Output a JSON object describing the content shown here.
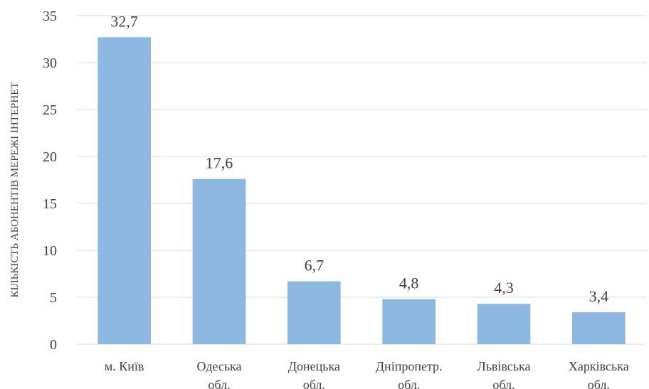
{
  "chart_data": {
    "type": "bar",
    "categories": [
      [
        "м. Київ"
      ],
      [
        "Одеська",
        "обл."
      ],
      [
        "Донецька",
        "обл."
      ],
      [
        "Дніпропетр.",
        "обл."
      ],
      [
        "Львівська",
        "обл."
      ],
      [
        "Харківська",
        "обл."
      ]
    ],
    "values": [
      32.7,
      17.6,
      6.7,
      4.8,
      4.3,
      3.4
    ],
    "data_labels": [
      "32,7",
      "17,6",
      "6,7",
      "4,8",
      "4,3",
      "3,4"
    ],
    "yticks": [
      0,
      5,
      10,
      15,
      20,
      25,
      30,
      35
    ],
    "ylim": [
      0,
      35
    ],
    "ylabel": "КІЛЬКІСТЬ АБОНЕНТІВ МЕРЕЖІ ІНТЕРНЕТ",
    "xlabel": "",
    "title": "",
    "grid": true,
    "colors": {
      "bar": "#8DB8E2",
      "grid": "#D9D9D9",
      "text": "#404040"
    }
  }
}
